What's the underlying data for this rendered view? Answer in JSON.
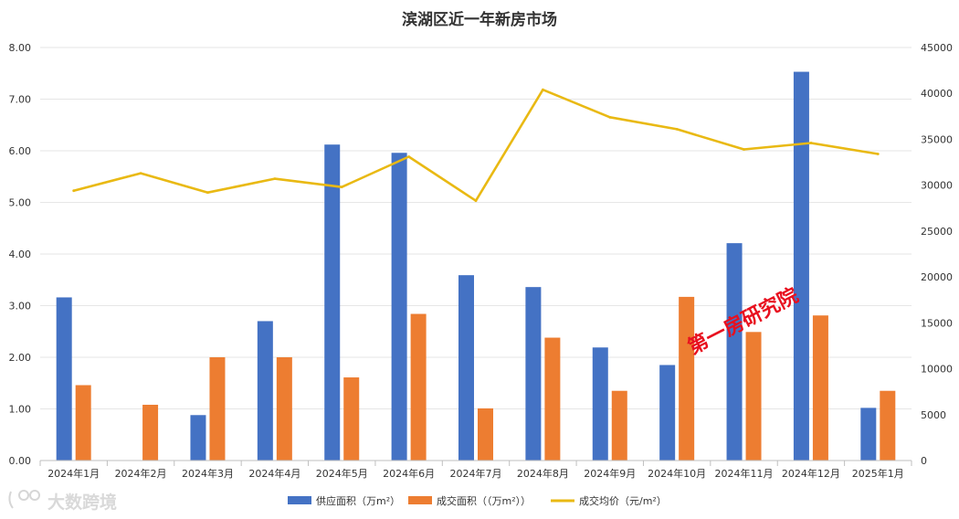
{
  "chart_data": {
    "type": "bar",
    "title": "滨湖区近一年新房市场",
    "categories": [
      "2024年1月",
      "2024年2月",
      "2024年3月",
      "2024年4月",
      "2024年5月",
      "2024年6月",
      "2024年7月",
      "2024年8月",
      "2024年9月",
      "2024年10月",
      "2024年11月",
      "2024年12月",
      "2025年1月"
    ],
    "series": [
      {
        "name": "供应面积（万m²）",
        "kind": "bar",
        "axis": "left",
        "color": "#4472c4",
        "values": [
          3.16,
          0,
          0.88,
          2.7,
          6.12,
          5.96,
          3.59,
          3.36,
          2.19,
          1.85,
          4.21,
          7.53,
          1.02
        ]
      },
      {
        "name": "成交面积（（万m²））",
        "kind": "bar",
        "axis": "left",
        "color": "#ed7d31",
        "values": [
          1.46,
          1.08,
          2.0,
          2.0,
          1.61,
          2.84,
          1.01,
          2.38,
          1.35,
          3.17,
          2.49,
          2.81,
          1.35
        ]
      },
      {
        "name": "成交均价（元/m²）",
        "kind": "line",
        "axis": "right",
        "color": "#e9b913",
        "values": [
          29400,
          31300,
          29200,
          30700,
          29800,
          33100,
          28300,
          40400,
          37400,
          36100,
          33900,
          34600,
          33400
        ]
      }
    ],
    "y_left": {
      "min": 0,
      "max": 8,
      "ticks": [
        "0.00",
        "1.00",
        "2.00",
        "3.00",
        "4.00",
        "5.00",
        "6.00",
        "7.00",
        "8.00"
      ]
    },
    "y_right": {
      "min": 0,
      "max": 45000,
      "ticks": [
        "0",
        "5000",
        "10000",
        "15000",
        "20000",
        "25000",
        "30000",
        "35000",
        "40000",
        "45000"
      ]
    },
    "grid": true,
    "legend": "bottom-center"
  },
  "watermark": "第一房研究院",
  "logo": {
    "text": "大数跨境",
    "icon": "logo-mark-icon"
  }
}
